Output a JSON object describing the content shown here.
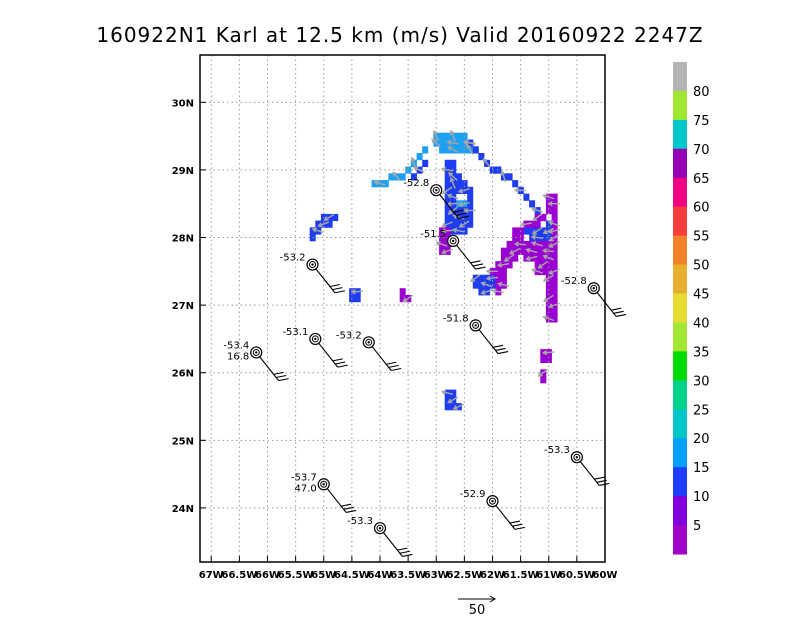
{
  "title": "160922N1 Karl at 12.5 km (m/s) Valid 20160922  2247Z",
  "chart_data": {
    "type": "heatmap",
    "title": "160922N1 Karl at 12.5 km (m/s) Valid 20160922  2247Z",
    "xlabel": "",
    "ylabel": "",
    "xlim": [
      -67.2,
      -60.0
    ],
    "ylim": [
      23.2,
      30.7
    ],
    "grid": true,
    "x_ticks": [
      -67,
      -66.5,
      -66,
      -65.5,
      -65,
      -64.5,
      -64,
      -63.5,
      -63,
      -62.5,
      -62,
      -61.5,
      -61,
      -60.5,
      -60
    ],
    "x_tick_labels": [
      "67W",
      "66.5W",
      "66W",
      "65.5W",
      "65W",
      "64.5W",
      "64W",
      "63.5W",
      "63W",
      "62.5W",
      "62W",
      "61.5W",
      "61W",
      "60.5W",
      "60W"
    ],
    "y_ticks": [
      24,
      25,
      26,
      27,
      28,
      29,
      30
    ],
    "y_tick_labels": [
      "24N",
      "25N",
      "26N",
      "27N",
      "28N",
      "29N",
      "30N"
    ],
    "colorbar": {
      "levels": [
        5,
        10,
        15,
        20,
        25,
        30,
        35,
        40,
        45,
        50,
        55,
        60,
        65,
        70,
        75,
        80
      ],
      "labels": [
        "5",
        "10",
        "15",
        "20",
        "25",
        "30",
        "35",
        "40",
        "45",
        "50",
        "55",
        "60",
        "65",
        "70",
        "75",
        "80"
      ],
      "colors": [
        "#a000c8",
        "#8200dc",
        "#1e3cff",
        "#00a0ff",
        "#00c8c8",
        "#00d28c",
        "#00dc00",
        "#a0e632",
        "#e6dc32",
        "#e6af2d",
        "#f08228",
        "#fa3c3c",
        "#f00082",
        "#9600b4",
        "#00c8c8",
        "#a0e632",
        "#b4b4b4"
      ]
    },
    "wind_regions": [
      {
        "speed": 15,
        "cells": [
          [
            -63.0,
            29.5
          ],
          [
            -62.9,
            29.5
          ],
          [
            -62.8,
            29.5
          ],
          [
            -62.7,
            29.5
          ],
          [
            -62.6,
            29.5
          ],
          [
            -62.5,
            29.5
          ],
          [
            -63.0,
            29.4
          ],
          [
            -62.9,
            29.4
          ],
          [
            -62.8,
            29.4
          ],
          [
            -62.7,
            29.4
          ],
          [
            -62.6,
            29.4
          ],
          [
            -62.5,
            29.4
          ],
          [
            -62.4,
            29.4
          ],
          [
            -62.9,
            29.3
          ],
          [
            -62.8,
            29.3
          ],
          [
            -62.7,
            29.3
          ],
          [
            -62.6,
            29.3
          ],
          [
            -62.5,
            29.3
          ],
          [
            -62.4,
            29.3
          ],
          [
            -63.2,
            29.3
          ],
          [
            -63.3,
            29.2
          ],
          [
            -63.4,
            29.1
          ],
          [
            -63.5,
            29.0
          ],
          [
            -63.6,
            28.9
          ],
          [
            -63.7,
            28.9
          ],
          [
            -63.8,
            28.9
          ],
          [
            -63.9,
            28.8
          ],
          [
            -64.0,
            28.8
          ],
          [
            -64.1,
            28.8
          ],
          [
            -62.6,
            28.5
          ],
          [
            -62.5,
            28.5
          ]
        ]
      },
      {
        "speed": 10,
        "cells": [
          [
            -62.4,
            29.4
          ],
          [
            -62.3,
            29.3
          ],
          [
            -62.2,
            29.2
          ],
          [
            -62.1,
            29.1
          ],
          [
            -62.0,
            29.0
          ],
          [
            -61.9,
            29.0
          ],
          [
            -61.8,
            28.9
          ],
          [
            -61.7,
            28.9
          ],
          [
            -61.6,
            28.8
          ],
          [
            -61.5,
            28.7
          ],
          [
            -61.4,
            28.6
          ],
          [
            -61.3,
            28.5
          ],
          [
            -61.2,
            28.4
          ],
          [
            -61.1,
            28.3
          ],
          [
            -61.0,
            28.2
          ],
          [
            -61.0,
            28.1
          ],
          [
            -62.8,
            29.1
          ],
          [
            -62.7,
            29.1
          ],
          [
            -62.8,
            29.0
          ],
          [
            -62.7,
            29.0
          ],
          [
            -62.8,
            28.9
          ],
          [
            -62.7,
            28.9
          ],
          [
            -62.6,
            28.9
          ],
          [
            -62.8,
            28.8
          ],
          [
            -62.7,
            28.8
          ],
          [
            -62.6,
            28.8
          ],
          [
            -62.5,
            28.8
          ],
          [
            -62.8,
            28.7
          ],
          [
            -62.7,
            28.7
          ],
          [
            -62.6,
            28.7
          ],
          [
            -62.5,
            28.7
          ],
          [
            -62.4,
            28.7
          ],
          [
            -62.8,
            28.6
          ],
          [
            -62.7,
            28.6
          ],
          [
            -62.4,
            28.6
          ],
          [
            -62.8,
            28.5
          ],
          [
            -62.7,
            28.5
          ],
          [
            -62.4,
            28.5
          ],
          [
            -62.8,
            28.4
          ],
          [
            -62.7,
            28.4
          ],
          [
            -62.6,
            28.4
          ],
          [
            -62.5,
            28.4
          ],
          [
            -62.4,
            28.4
          ],
          [
            -62.8,
            28.3
          ],
          [
            -62.7,
            28.3
          ],
          [
            -62.6,
            28.3
          ],
          [
            -62.5,
            28.3
          ],
          [
            -62.4,
            28.3
          ],
          [
            -62.8,
            28.2
          ],
          [
            -62.7,
            28.2
          ],
          [
            -62.6,
            28.2
          ],
          [
            -62.5,
            28.2
          ],
          [
            -62.4,
            28.2
          ],
          [
            -62.7,
            28.1
          ],
          [
            -62.6,
            28.1
          ],
          [
            -62.5,
            28.1
          ],
          [
            -63.2,
            29.1
          ],
          [
            -63.3,
            29.0
          ],
          [
            -63.4,
            28.9
          ],
          [
            -65.0,
            28.3
          ],
          [
            -64.9,
            28.3
          ],
          [
            -64.8,
            28.3
          ],
          [
            -65.1,
            28.2
          ],
          [
            -65.0,
            28.2
          ],
          [
            -64.9,
            28.2
          ],
          [
            -65.2,
            28.1
          ],
          [
            -65.1,
            28.1
          ],
          [
            -65.2,
            28.0
          ],
          [
            -64.5,
            27.2
          ],
          [
            -64.4,
            27.2
          ],
          [
            -64.5,
            27.1
          ],
          [
            -64.4,
            27.1
          ],
          [
            -62.3,
            27.4
          ],
          [
            -62.2,
            27.4
          ],
          [
            -62.1,
            27.4
          ],
          [
            -62.0,
            27.4
          ],
          [
            -62.3,
            27.3
          ],
          [
            -62.2,
            27.3
          ],
          [
            -62.1,
            27.3
          ],
          [
            -62.0,
            27.3
          ],
          [
            -62.2,
            27.2
          ],
          [
            -62.1,
            27.2
          ],
          [
            -61.4,
            28.1
          ],
          [
            -61.3,
            28.1
          ],
          [
            -61.2,
            28.1
          ],
          [
            -61.1,
            28.1
          ],
          [
            -61.3,
            28.0
          ],
          [
            -61.2,
            28.0
          ],
          [
            -61.1,
            28.0
          ],
          [
            -61.0,
            28.0
          ],
          [
            -62.8,
            25.7
          ],
          [
            -62.7,
            25.7
          ],
          [
            -62.8,
            25.6
          ],
          [
            -62.7,
            25.6
          ],
          [
            -62.8,
            25.5
          ],
          [
            -62.7,
            25.5
          ],
          [
            -62.6,
            25.5
          ]
        ]
      },
      {
        "speed": 5,
        "cells": [
          [
            -61.0,
            28.6
          ],
          [
            -60.9,
            28.6
          ],
          [
            -61.0,
            28.5
          ],
          [
            -60.9,
            28.5
          ],
          [
            -61.0,
            28.4
          ],
          [
            -60.9,
            28.4
          ],
          [
            -61.2,
            28.3
          ],
          [
            -61.1,
            28.3
          ],
          [
            -60.9,
            28.3
          ],
          [
            -61.4,
            28.2
          ],
          [
            -61.3,
            28.2
          ],
          [
            -61.2,
            28.2
          ],
          [
            -60.9,
            28.2
          ],
          [
            -61.6,
            28.1
          ],
          [
            -61.5,
            28.1
          ],
          [
            -60.9,
            28.1
          ],
          [
            -61.6,
            28.0
          ],
          [
            -61.5,
            28.0
          ],
          [
            -60.9,
            28.0
          ],
          [
            -61.7,
            27.9
          ],
          [
            -61.6,
            27.9
          ],
          [
            -61.5,
            27.9
          ],
          [
            -61.4,
            27.9
          ],
          [
            -61.3,
            27.9
          ],
          [
            -61.2,
            27.9
          ],
          [
            -61.1,
            27.9
          ],
          [
            -61.0,
            27.9
          ],
          [
            -60.9,
            27.9
          ],
          [
            -61.8,
            27.8
          ],
          [
            -61.7,
            27.8
          ],
          [
            -61.6,
            27.8
          ],
          [
            -61.5,
            27.8
          ],
          [
            -61.4,
            27.8
          ],
          [
            -61.3,
            27.8
          ],
          [
            -61.2,
            27.8
          ],
          [
            -61.1,
            27.8
          ],
          [
            -61.0,
            27.8
          ],
          [
            -60.9,
            27.8
          ],
          [
            -61.8,
            27.7
          ],
          [
            -61.7,
            27.7
          ],
          [
            -61.6,
            27.7
          ],
          [
            -61.4,
            27.7
          ],
          [
            -61.3,
            27.7
          ],
          [
            -61.2,
            27.7
          ],
          [
            -61.1,
            27.7
          ],
          [
            -61.0,
            27.7
          ],
          [
            -60.9,
            27.7
          ],
          [
            -61.9,
            27.6
          ],
          [
            -61.8,
            27.6
          ],
          [
            -61.7,
            27.6
          ],
          [
            -61.2,
            27.6
          ],
          [
            -61.1,
            27.6
          ],
          [
            -61.0,
            27.6
          ],
          [
            -60.9,
            27.6
          ],
          [
            -62.0,
            27.5
          ],
          [
            -61.9,
            27.5
          ],
          [
            -61.8,
            27.5
          ],
          [
            -61.2,
            27.5
          ],
          [
            -61.1,
            27.5
          ],
          [
            -61.0,
            27.5
          ],
          [
            -60.9,
            27.5
          ],
          [
            -61.9,
            27.4
          ],
          [
            -61.8,
            27.4
          ],
          [
            -61.0,
            27.4
          ],
          [
            -60.9,
            27.4
          ],
          [
            -61.9,
            27.3
          ],
          [
            -61.8,
            27.3
          ],
          [
            -61.0,
            27.3
          ],
          [
            -60.9,
            27.3
          ],
          [
            -61.9,
            27.2
          ],
          [
            -61.0,
            27.2
          ],
          [
            -60.9,
            27.2
          ],
          [
            -61.0,
            27.1
          ],
          [
            -60.9,
            27.1
          ],
          [
            -61.0,
            27.0
          ],
          [
            -60.9,
            27.0
          ],
          [
            -61.0,
            26.9
          ],
          [
            -60.9,
            26.9
          ],
          [
            -61.0,
            26.8
          ],
          [
            -60.9,
            26.8
          ],
          [
            -61.1,
            26.3
          ],
          [
            -61.0,
            26.3
          ],
          [
            -61.1,
            26.2
          ],
          [
            -61.0,
            26.2
          ],
          [
            -61.1,
            26.0
          ],
          [
            -61.1,
            25.9
          ],
          [
            -62.9,
            28.1
          ],
          [
            -62.8,
            28.1
          ],
          [
            -62.9,
            28.0
          ],
          [
            -62.8,
            28.0
          ],
          [
            -62.9,
            27.9
          ],
          [
            -62.8,
            27.9
          ],
          [
            -62.9,
            27.8
          ],
          [
            -62.8,
            27.8
          ],
          [
            -63.6,
            27.2
          ],
          [
            -63.6,
            27.1
          ],
          [
            -63.5,
            27.1
          ]
        ]
      }
    ],
    "flight_obs": [
      {
        "lon": -66.2,
        "lat": 26.3,
        "label": "-53.4",
        "label2": "16.8"
      },
      {
        "lon": -65.15,
        "lat": 26.5,
        "label": "-53.1",
        "label2": ""
      },
      {
        "lon": -64.2,
        "lat": 26.45,
        "label": "-53.2",
        "label2": ""
      },
      {
        "lon": -65.2,
        "lat": 27.6,
        "label": "-53.2",
        "label2": ""
      },
      {
        "lon": -63.0,
        "lat": 28.7,
        "label": "-52.8",
        "label2": ""
      },
      {
        "lon": -62.7,
        "lat": 27.95,
        "label": "-51.5",
        "label2": ""
      },
      {
        "lon": -62.3,
        "lat": 26.7,
        "label": "-51.8",
        "label2": ""
      },
      {
        "lon": -60.2,
        "lat": 27.25,
        "label": "-52.8",
        "label2": ""
      },
      {
        "lon": -60.5,
        "lat": 24.75,
        "label": "-53.3",
        "label2": ""
      },
      {
        "lon": -65.0,
        "lat": 24.35,
        "label": "-53.7",
        "label2": "47.0"
      },
      {
        "lon": -62.0,
        "lat": 24.1,
        "label": "-52.9",
        "label2": ""
      },
      {
        "lon": -64.0,
        "lat": 23.7,
        "label": "-53.3",
        "label2": ""
      }
    ],
    "reference_vector": {
      "value": 50,
      "label": "50"
    }
  }
}
